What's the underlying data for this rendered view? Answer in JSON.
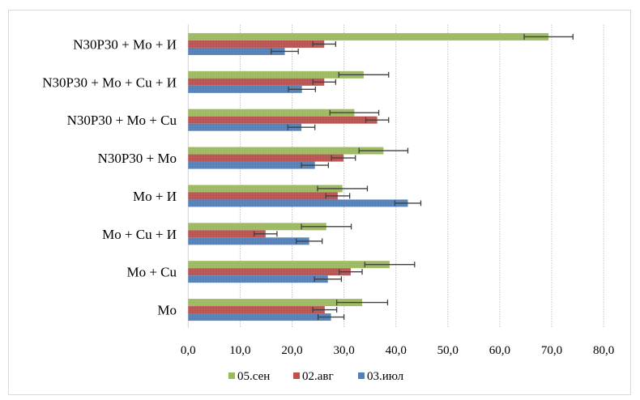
{
  "chart_data": {
    "type": "bar",
    "orientation": "horizontal",
    "title": "",
    "xlabel": "",
    "ylabel": "",
    "xlim": [
      0,
      80
    ],
    "x_ticks": [
      "0,0",
      "10,0",
      "20,0",
      "30,0",
      "40,0",
      "50,0",
      "60,0",
      "70,0",
      "80,0"
    ],
    "x_tick_values": [
      0,
      10,
      20,
      30,
      40,
      50,
      60,
      70,
      80
    ],
    "grid": "vertical",
    "legend_position": "bottom",
    "categories": [
      "N30P30 + Mo + И",
      "N30P30 + Mo + Cu + И",
      "N30P30 + Mo + Cu",
      "N30P30 + Mo",
      "Mo + И",
      "Mo + Cu + И",
      "Mo + Cu",
      "Mo"
    ],
    "series": [
      {
        "name": "05.сен",
        "color": "#9BBB59",
        "values": [
          69.4,
          33.8,
          32.0,
          37.6,
          29.7,
          26.6,
          38.8,
          33.5
        ],
        "errors": [
          4.7,
          4.8,
          4.7,
          4.7,
          4.8,
          4.8,
          4.8,
          4.9
        ]
      },
      {
        "name": "02.авг",
        "color": "#C0504D",
        "values": [
          26.2,
          26.2,
          36.4,
          29.9,
          28.8,
          14.9,
          31.3,
          26.3
        ],
        "errors": [
          2.2,
          2.2,
          2.2,
          2.3,
          2.3,
          2.2,
          2.2,
          2.3
        ]
      },
      {
        "name": "03.июл",
        "color": "#4F81BD",
        "values": [
          18.6,
          21.9,
          21.8,
          24.4,
          42.3,
          23.3,
          26.9,
          27.5
        ],
        "errors": [
          2.6,
          2.6,
          2.6,
          2.6,
          2.5,
          2.5,
          2.6,
          2.5
        ]
      }
    ]
  }
}
